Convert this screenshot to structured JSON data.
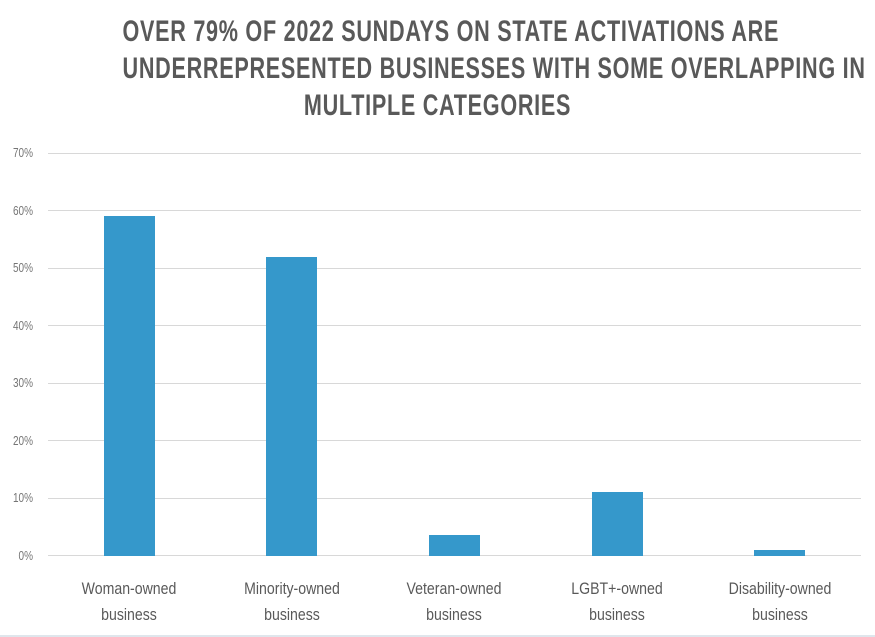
{
  "title": {
    "lines": [
      "OVER 79% OF 2022 SUNDAYS ON STATE ACTIVATIONS ARE",
      "UNDERREPRESENTED BUSINESSES WITH SOME OVERLAPPING IN",
      "MULTIPLE CATEGORIES"
    ]
  },
  "chart_data": {
    "type": "bar",
    "title": "OVER 79% OF 2022 SUNDAYS ON STATE ACTIVATIONS ARE UNDERREPRESENTED BUSINESSES WITH SOME OVERLAPPING IN MULTIPLE CATEGORIES",
    "categories": [
      "Woman-owned business",
      "Minority-owned business",
      "Veteran-owned business",
      "LGBT+-owned business",
      "Disability-owned business"
    ],
    "values": [
      59,
      52,
      3.5,
      11,
      1
    ],
    "xlabel": "",
    "ylabel": "",
    "ylim": [
      0,
      70
    ],
    "ytick_step": 10,
    "ytick_labels": [
      "0%",
      "10%",
      "20%",
      "30%",
      "40%",
      "50%",
      "60%",
      "70%"
    ],
    "grid": true,
    "legend": false,
    "bar_color": "#3598cb"
  },
  "colors": {
    "bar": "#3598cb",
    "gridline": "#d8d8d8",
    "title_text": "#595959",
    "tick_text": "#757575",
    "category_text": "#595959",
    "background": "#ffffff",
    "bottom_border": "#dfe6ec"
  }
}
